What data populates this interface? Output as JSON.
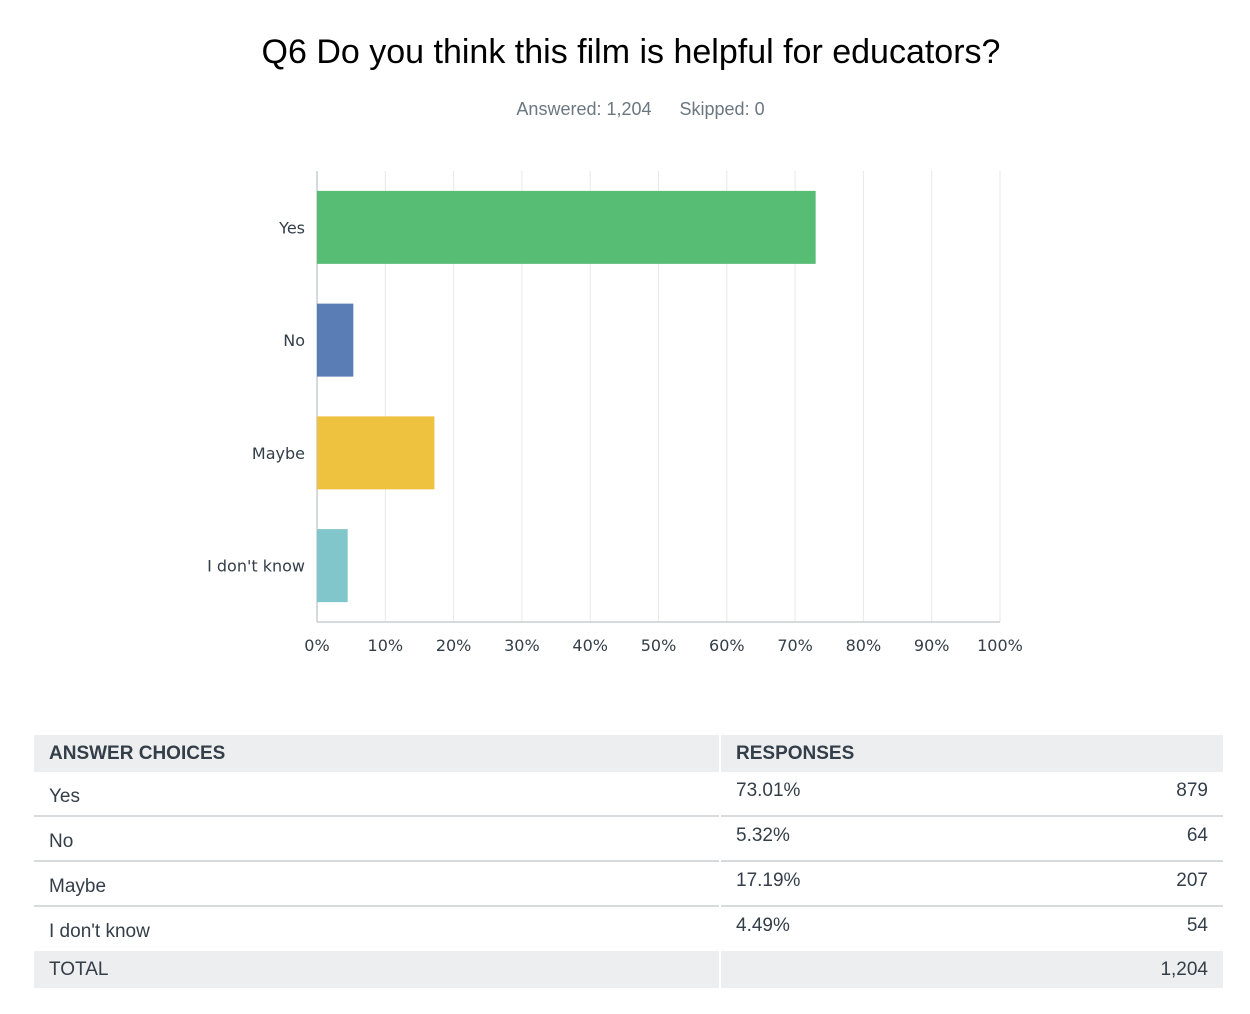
{
  "question": {
    "title": "Q6 Do you think this film is helpful for educators?",
    "answered_label": "Answered: 1,204",
    "skipped_label": "Skipped: 0"
  },
  "chart_data": {
    "type": "bar",
    "orientation": "horizontal",
    "categories": [
      "Yes",
      "No",
      "Maybe",
      "I don't know"
    ],
    "values": [
      73.01,
      5.32,
      17.19,
      4.49
    ],
    "colors": [
      "#57bd75",
      "#5a7db5",
      "#eec13f",
      "#81c6cb"
    ],
    "xlim": [
      0,
      100
    ],
    "x_ticks": [
      "0%",
      "10%",
      "20%",
      "30%",
      "40%",
      "50%",
      "60%",
      "70%",
      "80%",
      "90%",
      "100%"
    ],
    "grid": true,
    "title": "",
    "xlabel": "",
    "ylabel": ""
  },
  "table": {
    "headers": {
      "choice": "ANSWER CHOICES",
      "responses": "RESPONSES"
    },
    "rows": [
      {
        "choice": "Yes",
        "percent": "73.01%",
        "count": "879"
      },
      {
        "choice": "No",
        "percent": "5.32%",
        "count": "64"
      },
      {
        "choice": "Maybe",
        "percent": "17.19%",
        "count": "207"
      },
      {
        "choice": "I don't know",
        "percent": "4.49%",
        "count": "54"
      }
    ],
    "total": {
      "label": "TOTAL",
      "count": "1,204"
    }
  }
}
